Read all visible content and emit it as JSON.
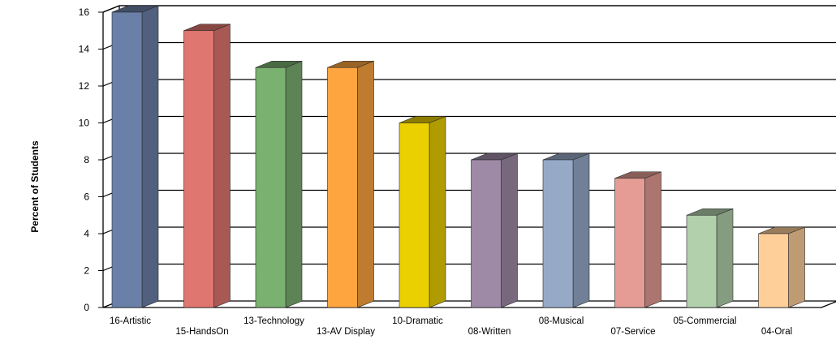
{
  "chart_data": {
    "type": "bar",
    "style": "3d-columns",
    "ylabel": "Percent of Students",
    "xlabel": "",
    "title": "",
    "ylim": [
      0,
      16
    ],
    "yticks": [
      0,
      2,
      4,
      6,
      8,
      10,
      12,
      14,
      16
    ],
    "grid": true,
    "categories": [
      "16-Artistic",
      "15-HandsOn",
      "13-Technology",
      "13-AV Display",
      "10-Dramatic",
      "08-Written",
      "08-Musical",
      "07-Service",
      "05-Commercial",
      "04-Oral"
    ],
    "values": [
      16,
      15,
      13,
      13,
      10,
      8,
      8,
      7,
      5,
      4
    ],
    "colors": [
      "#6A80A8",
      "#E07670",
      "#7AB070",
      "#FFA540",
      "#EAD000",
      "#9E8AA6",
      "#96AAC8",
      "#E59C94",
      "#B2D0AC",
      "#FFCF99"
    ]
  }
}
